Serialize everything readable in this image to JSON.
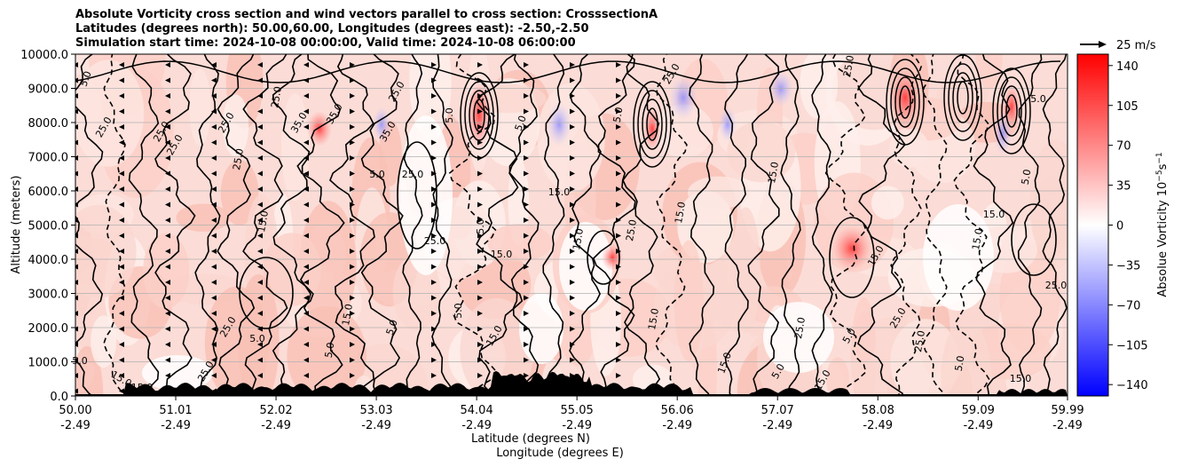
{
  "chart_data": {
    "type": "heatmap",
    "title_lines": [
      "Absolute Vorticity cross section and wind vectors parallel to cross section: CrosssectionA",
      "Latitudes (degrees north): 50.00,60.00, Longitudes (degrees east): -2.50,-2.50",
      "Simulation start time: 2024-10-08 00:00:00, Valid time: 2024-10-08 06:00:00"
    ],
    "ylabel": "Altitude (meters)",
    "xlabel_line1": "Latitude (degrees N)",
    "xlabel_line2": "Longitude (degrees E)",
    "ylim": [
      0,
      10000
    ],
    "xlim": [
      50.0,
      59.99
    ],
    "yticks": [
      "0.0",
      "1000.0",
      "2000.0",
      "3000.0",
      "4000.0",
      "5000.0",
      "6000.0",
      "7000.0",
      "8000.0",
      "9000.0",
      "10000.0"
    ],
    "xticks": [
      {
        "lat": "50.00",
        "lon": "-2.49"
      },
      {
        "lat": "51.01",
        "lon": "-2.49"
      },
      {
        "lat": "52.02",
        "lon": "-2.49"
      },
      {
        "lat": "53.03",
        "lon": "-2.49"
      },
      {
        "lat": "54.04",
        "lon": "-2.49"
      },
      {
        "lat": "55.05",
        "lon": "-2.49"
      },
      {
        "lat": "56.06",
        "lon": "-2.49"
      },
      {
        "lat": "57.07",
        "lon": "-2.49"
      },
      {
        "lat": "58.08",
        "lon": "-2.49"
      },
      {
        "lat": "59.09",
        "lon": "-2.49"
      },
      {
        "lat": "59.99",
        "lon": "-2.49"
      }
    ],
    "grid": "horizontal",
    "colorbar": {
      "label": "Absolue Vorticity 10",
      "label_exp": "−5",
      "label_unit": "s",
      "label_unit_exp": "−1",
      "min": -150,
      "max": 150,
      "ticks": [
        "140",
        "105",
        "70",
        "35",
        "0",
        "−35",
        "−70",
        "−105",
        "−140"
      ],
      "tick_values": [
        140,
        105,
        70,
        35,
        0,
        -35,
        -70,
        -105,
        -140
      ],
      "colormap": "bwr"
    },
    "quiver_key": {
      "label": "25 m/s"
    },
    "contour_labels": [
      "5.0",
      "15.0",
      "25.0",
      "35.0"
    ],
    "colors": {
      "positive": "#ff0000",
      "negative": "#0000ff",
      "zero": "#ffffff",
      "terrain": "#000000"
    }
  }
}
